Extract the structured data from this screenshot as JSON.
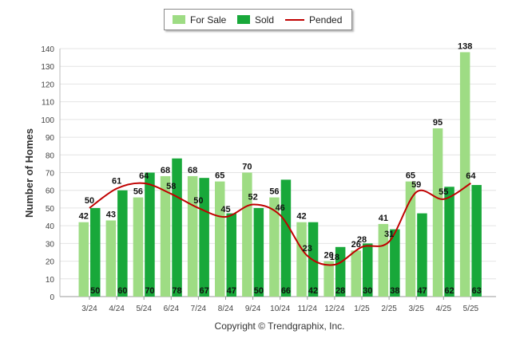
{
  "chart_data": {
    "type": "bar",
    "ylabel": "Number of Homes",
    "xlabel": "",
    "ylim": [
      0,
      140
    ],
    "yticks": [
      0,
      10,
      20,
      30,
      40,
      50,
      60,
      70,
      80,
      90,
      100,
      110,
      120,
      130,
      140
    ],
    "grid": true,
    "legend_position": "top-center",
    "categories": [
      "3/24",
      "4/24",
      "5/24",
      "6/24",
      "7/24",
      "8/24",
      "9/24",
      "10/24",
      "11/24",
      "12/24",
      "1/25",
      "2/25",
      "3/25",
      "4/25",
      "5/25"
    ],
    "series": [
      {
        "name": "For Sale",
        "kind": "bar",
        "color": "#9edc84",
        "values": [
          42,
          43,
          56,
          68,
          68,
          65,
          70,
          56,
          42,
          20,
          26,
          41,
          65,
          95,
          138
        ]
      },
      {
        "name": "Sold",
        "kind": "bar",
        "color": "#18a83a",
        "values": [
          50,
          60,
          70,
          78,
          67,
          47,
          50,
          66,
          42,
          28,
          30,
          38,
          47,
          62,
          63
        ]
      },
      {
        "name": "Pended",
        "kind": "line",
        "color": "#c00000",
        "values": [
          50,
          61,
          64,
          58,
          50,
          45,
          52,
          46,
          23,
          18,
          28,
          31,
          59,
          55,
          64
        ]
      }
    ]
  },
  "footer": {
    "copyright": "Copyright © Trendgraphix, Inc."
  }
}
